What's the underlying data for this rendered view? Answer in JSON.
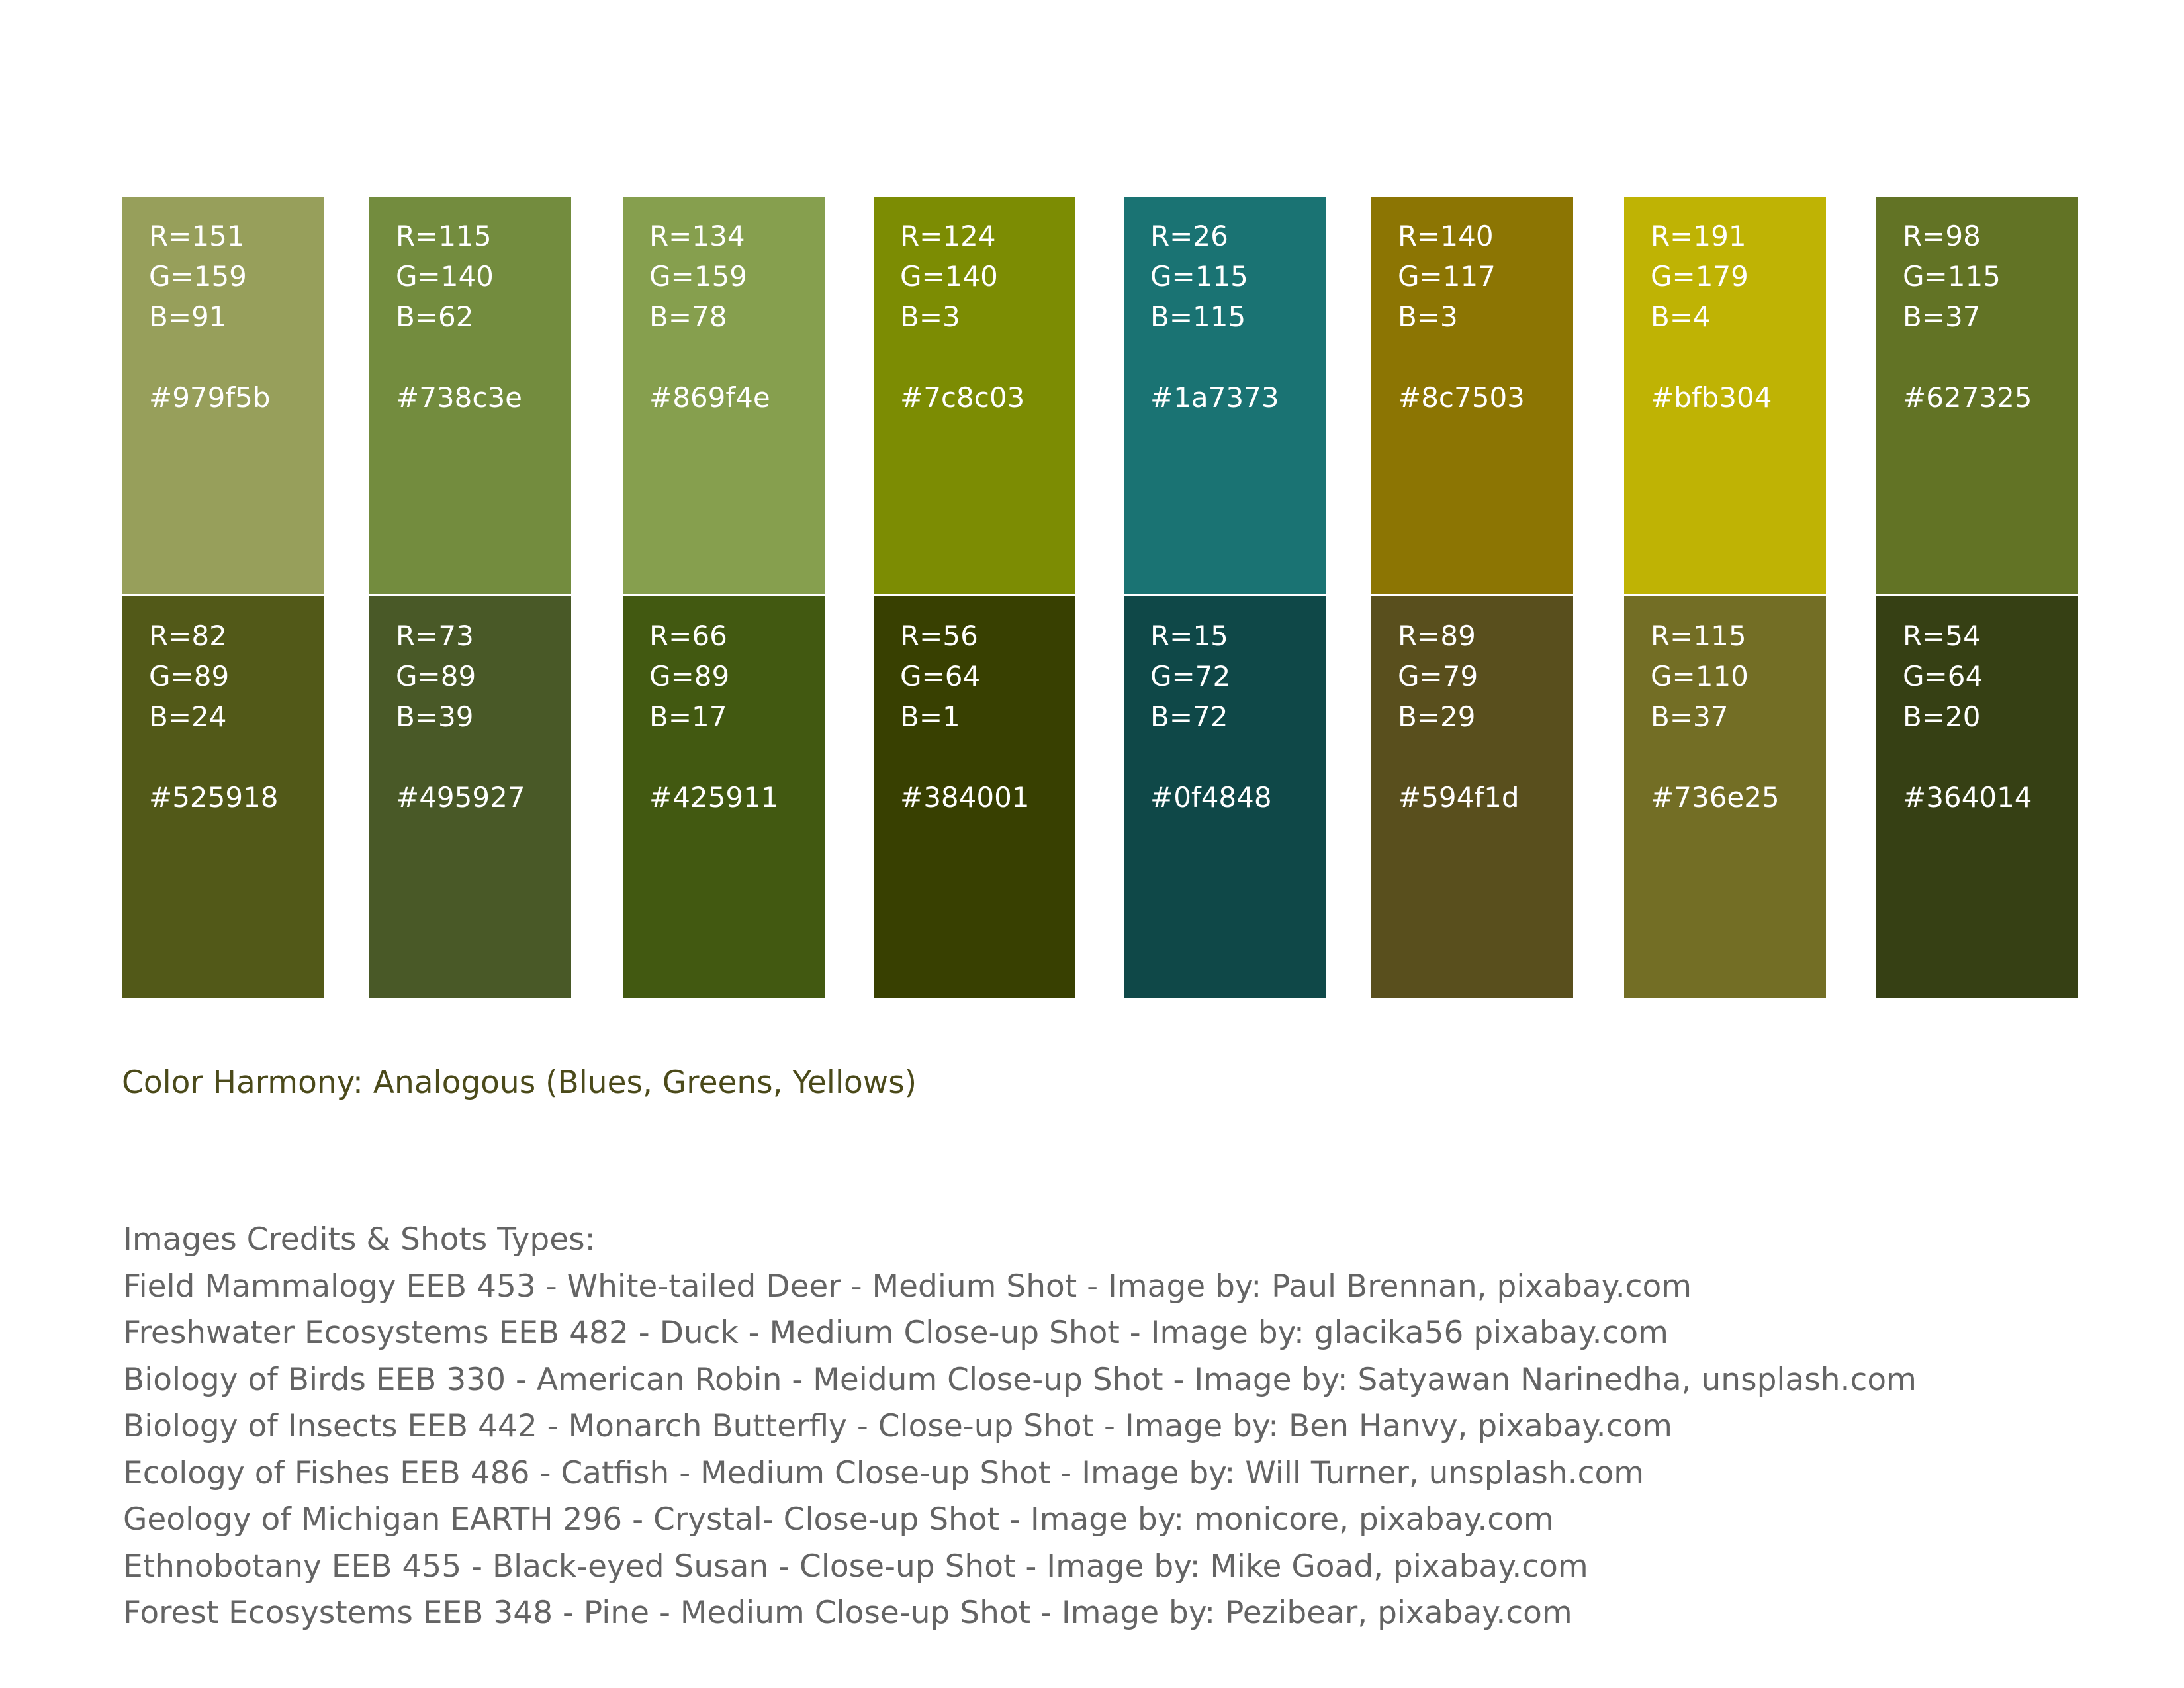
{
  "palette": {
    "columns": [
      {
        "top": {
          "r": "R=151",
          "g": "G=159",
          "b": "B=91",
          "hex": "#979f5b",
          "color": "#979f5b"
        },
        "bottom": {
          "r": "R=82",
          "g": "G=89",
          "b": "B=24",
          "hex": "#525918",
          "color": "#525918"
        }
      },
      {
        "top": {
          "r": "R=115",
          "g": "G=140",
          "b": "B=62",
          "hex": "#738c3e",
          "color": "#738c3e"
        },
        "bottom": {
          "r": "R=73",
          "g": "G=89",
          "b": "B=39",
          "hex": "#495927",
          "color": "#495927"
        }
      },
      {
        "top": {
          "r": "R=134",
          "g": "G=159",
          "b": "B=78",
          "hex": "#869f4e",
          "color": "#869f4e"
        },
        "bottom": {
          "r": "R=66",
          "g": "G=89",
          "b": "B=17",
          "hex": "#425911",
          "color": "#425911"
        }
      },
      {
        "top": {
          "r": "R=124",
          "g": "G=140",
          "b": "B=3",
          "hex": "#7c8c03",
          "color": "#7c8c03"
        },
        "bottom": {
          "r": "R=56",
          "g": "G=64",
          "b": "B=1",
          "hex": "#384001",
          "color": "#384001"
        }
      },
      {
        "top": {
          "r": "R=26",
          "g": "G=115",
          "b": "B=115",
          "hex": "#1a7373",
          "color": "#1a7373"
        },
        "bottom": {
          "r": "R=15",
          "g": "G=72",
          "b": "B=72",
          "hex": "#0f4848",
          "color": "#0f4848"
        }
      },
      {
        "top": {
          "r": "R=140",
          "g": "G=117",
          "b": "B=3",
          "hex": "#8c7503",
          "color": "#8c7503"
        },
        "bottom": {
          "r": "R=89",
          "g": "G=79",
          "b": "B=29",
          "hex": "#594f1d",
          "color": "#594f1d"
        }
      },
      {
        "top": {
          "r": "R=191",
          "g": "G=179",
          "b": "B=4",
          "hex": "#bfb304",
          "color": "#bfb304"
        },
        "bottom": {
          "r": "R=115",
          "g": "G=110",
          "b": "B=37",
          "hex": "#736e25",
          "color": "#736e25"
        }
      },
      {
        "top": {
          "r": "R=98",
          "g": "G=115",
          "b": "B=37",
          "hex": "#627325",
          "color": "#627325"
        },
        "bottom": {
          "r": "R=54",
          "g": "G=64",
          "b": "B=20",
          "hex": "#364014",
          "color": "#364014"
        }
      }
    ]
  },
  "harmony": {
    "text": "Color Harmony: Analogous (Blues, Greens, Yellows)",
    "color": "#4b4a1a"
  },
  "credits": {
    "heading": "Images Credits & Shots Types:",
    "lines": [
      "Field Mammalogy EEB 453 - White-tailed Deer - Medium Shot - Image by: Paul Brennan, pixabay.com",
      "Freshwater Ecosystems EEB 482 - Duck - Medium Close-up Shot - Image by: glacika56 pixabay.com",
      "Biology of Birds EEB 330 - American Robin - Meidum Close-up Shot - Image by: Satyawan Narinedha, unsplash.com",
      "Biology of Insects EEB 442 - Monarch Butterfly - Close-up Shot - Image by: Ben Hanvy, pixabay.com",
      "Ecology of Fishes EEB 486 - Catfish - Medium Close-up Shot - Image by: Will Turner, unsplash.com",
      "Geology of Michigan EARTH 296 - Crystal- Close-up Shot - Image by: monicore, pixabay.com",
      "Ethnobotany EEB 455 - Black-eyed Susan - Close-up Shot - Image by: Mike Goad, pixabay.com",
      "Forest Ecosystems EEB 348 - Pine - Medium Close-up Shot - Image by: Pezibear, pixabay.com"
    ],
    "color": "#646464"
  }
}
